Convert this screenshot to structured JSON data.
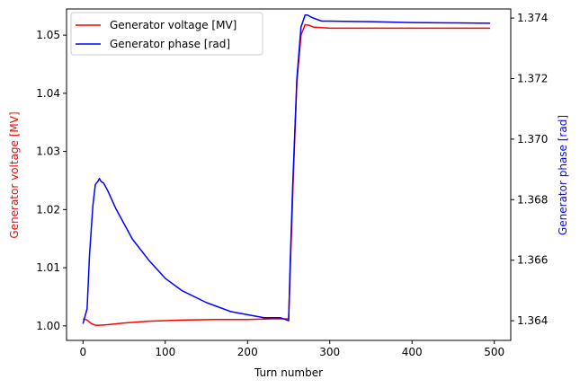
{
  "chart_data": {
    "type": "line",
    "xlabel": "Turn number",
    "ylabel_left": "Generator voltage [MV]",
    "ylabel_right": "Generator phase [rad]",
    "xlim": [
      -20,
      520
    ],
    "ylim_left": [
      0.9975,
      1.0545
    ],
    "ylim_right": [
      1.36335,
      1.3743
    ],
    "x_ticks": [
      0,
      100,
      200,
      300,
      400,
      500
    ],
    "y_left_ticks": [
      1.0,
      1.01,
      1.02,
      1.03,
      1.04,
      1.05
    ],
    "y_left_tick_labels": [
      "1.00",
      "1.01",
      "1.02",
      "1.03",
      "1.04",
      "1.05"
    ],
    "y_right_ticks": [
      1.364,
      1.366,
      1.368,
      1.37,
      1.372,
      1.374
    ],
    "y_right_tick_labels": [
      "1.364",
      "1.366",
      "1.368",
      "1.370",
      "1.372",
      "1.374"
    ],
    "legend_position": "top-left",
    "series": [
      {
        "name": "Generator voltage [MV]",
        "axis": "left",
        "color": "#ff0000",
        "x": [
          0,
          5,
          10,
          15,
          20,
          30,
          50,
          80,
          120,
          160,
          200,
          230,
          250,
          252,
          256,
          260,
          265,
          270,
          275,
          280,
          290,
          300,
          350,
          400,
          450,
          495
        ],
        "y": [
          1.0012,
          1.001,
          1.0004,
          1.0001,
          1.0001,
          1.0002,
          1.0005,
          1.0008,
          1.001,
          1.0011,
          1.0011,
          1.0012,
          1.0012,
          1.01,
          1.027,
          1.042,
          1.05,
          1.0518,
          1.0517,
          1.0514,
          1.0513,
          1.0512,
          1.0512,
          1.0512,
          1.0512,
          1.0512
        ]
      },
      {
        "name": "Generator phase [rad]",
        "axis": "right",
        "color": "#0000ff",
        "x": [
          0,
          2,
          5,
          8,
          10,
          12,
          15,
          18,
          20,
          22,
          25,
          30,
          40,
          50,
          60,
          80,
          100,
          120,
          150,
          180,
          200,
          220,
          240,
          250,
          252,
          255,
          260,
          265,
          270,
          273,
          276,
          280,
          290,
          300,
          350,
          400,
          450,
          495
        ],
        "y": [
          1.3639,
          1.3641,
          1.3644,
          1.3662,
          1.367,
          1.3678,
          1.3685,
          1.3686,
          1.3687,
          1.3686,
          1.36855,
          1.3683,
          1.3677,
          1.3672,
          1.3667,
          1.366,
          1.3654,
          1.365,
          1.3646,
          1.3643,
          1.3642,
          1.3641,
          1.3641,
          1.364,
          1.366,
          1.3685,
          1.372,
          1.3737,
          1.3741,
          1.3741,
          1.37405,
          1.374,
          1.3739,
          1.3739,
          1.37388,
          1.37385,
          1.37384,
          1.37383
        ]
      }
    ]
  }
}
